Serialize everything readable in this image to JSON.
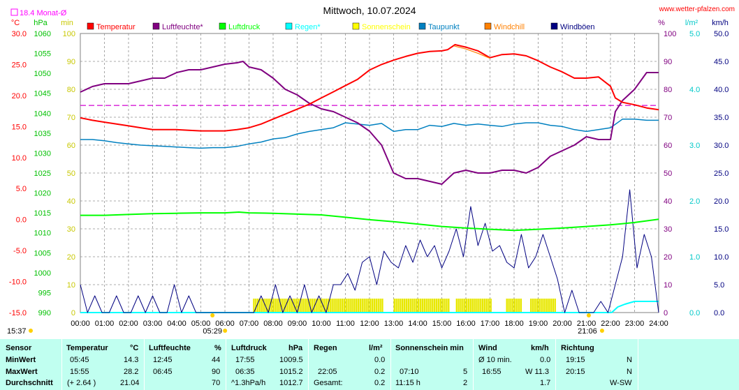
{
  "chart_data": {
    "type": "line",
    "title": "Mittwoch, 10.07.2024",
    "source": "www.wetter-pfalzen.com",
    "monthly_avg_label": "18.4 Monat-Ø",
    "axes_units": {
      "temp": "°C",
      "pressure": "hPa",
      "sun": "min",
      "humidity": "%",
      "rain": "l/m²",
      "wind": "km/h"
    },
    "x_ticks": [
      "00:00",
      "01:00",
      "02:00",
      "03:00",
      "04:00",
      "05:00",
      "06:00",
      "07:00",
      "08:00",
      "09:00",
      "10:00",
      "11:00",
      "12:00",
      "13:00",
      "14:00",
      "15:00",
      "16:00",
      "17:00",
      "18:00",
      "19:00",
      "20:00",
      "21:00",
      "22:00",
      "23:00",
      "24:00"
    ],
    "y_axes": {
      "temp": {
        "ticks": [
          "30.0",
          "25.0",
          "20.0",
          "15.0",
          "10.0",
          "5.0",
          "0.0",
          "-5.0",
          "-10.0",
          "-15.0"
        ],
        "range": [
          -15,
          30
        ]
      },
      "pressure": {
        "ticks": [
          "1060",
          "1055",
          "1050",
          "1045",
          "1040",
          "1035",
          "1030",
          "1025",
          "1020",
          "1015",
          "1010",
          "1005",
          "1000",
          "995",
          "990"
        ],
        "range": [
          990,
          1060
        ]
      },
      "sun": {
        "ticks": [
          "100",
          "90",
          "80",
          "70",
          "60",
          "50",
          "40",
          "30",
          "20",
          "10",
          "0"
        ],
        "range": [
          0,
          100
        ]
      },
      "humidity": {
        "ticks": [
          "100",
          "90",
          "80",
          "70",
          "60",
          "50",
          "40",
          "30",
          "20",
          "10",
          "0"
        ],
        "range": [
          0,
          100
        ]
      },
      "rain": {
        "ticks": [
          "5.0",
          "4.0",
          "3.0",
          "2.0",
          "1.0",
          "0.0"
        ],
        "range": [
          0,
          5
        ]
      },
      "wind": {
        "ticks": [
          "50.0",
          "45.0",
          "40.0",
          "35.0",
          "30.0",
          "25.0",
          "20.0",
          "15.0",
          "10.0",
          "5.0",
          "0.0"
        ],
        "range": [
          0,
          50
        ]
      }
    },
    "legend": [
      {
        "name": "Temperatur",
        "color": "#ff0000"
      },
      {
        "name": "Luftfeuchte*",
        "color": "#800080"
      },
      {
        "name": "Luftdruck",
        "color": "#00ff00"
      },
      {
        "name": "Regen*",
        "color": "#00ffff"
      },
      {
        "name": "Sonnenschein",
        "color": "#ffff00"
      },
      {
        "name": "Taupunkt",
        "color": "#0080c0"
      },
      {
        "name": "Windchill",
        "color": "#ff8000"
      },
      {
        "name": "Windböen",
        "color": "#000080"
      }
    ],
    "monthly_avg_temp": 18.4,
    "series": [
      {
        "name": "Temperatur",
        "axis": "temp",
        "color": "#ff0000",
        "x": [
          0,
          0.5,
          1,
          1.5,
          2,
          2.5,
          3,
          3.5,
          4,
          4.5,
          5,
          5.5,
          6,
          6.5,
          7,
          7.5,
          8,
          8.5,
          9,
          9.5,
          10,
          10.5,
          11,
          11.5,
          12,
          12.5,
          13,
          13.5,
          14,
          14.5,
          15,
          15.25,
          15.55,
          16,
          16.5,
          17,
          17.5,
          18,
          18.5,
          19,
          19.5,
          20,
          20.5,
          21,
          21.5,
          22,
          22.2,
          22.5,
          23,
          23.5,
          24
        ],
        "y": [
          16.4,
          16.0,
          15.7,
          15.4,
          15.1,
          14.8,
          14.5,
          14.5,
          14.5,
          14.4,
          14.3,
          14.3,
          14.3,
          14.5,
          14.8,
          15.4,
          16.2,
          17.0,
          17.8,
          18.6,
          19.6,
          20.6,
          21.6,
          22.6,
          24.1,
          25.0,
          25.7,
          26.3,
          26.8,
          27.1,
          27.2,
          27.4,
          28.2,
          27.8,
          27.2,
          26.1,
          26.6,
          26.7,
          26.4,
          25.6,
          24.6,
          23.8,
          22.8,
          22.8,
          23.0,
          21.5,
          19.6,
          18.9,
          18.5,
          18.0,
          17.7
        ]
      },
      {
        "name": "Luftfeuchte*",
        "axis": "humidity",
        "color": "#800080",
        "x": [
          0,
          0.5,
          1,
          1.5,
          2,
          2.5,
          3,
          3.5,
          4,
          4.5,
          5,
          5.5,
          6,
          6.5,
          6.75,
          7,
          7.5,
          8,
          8.5,
          9,
          9.5,
          10,
          10.5,
          11,
          11.5,
          12,
          12.5,
          13,
          13.5,
          14,
          14.5,
          15,
          15.5,
          16,
          16.5,
          17,
          17.5,
          18,
          18.5,
          19,
          19.5,
          20,
          20.5,
          21,
          21.5,
          22,
          22.2,
          22.5,
          23,
          23.5,
          24
        ],
        "y": [
          79,
          81,
          82,
          82,
          82,
          83,
          84,
          84,
          86,
          87,
          87,
          88,
          89,
          89.5,
          90,
          88,
          87,
          84,
          80,
          78,
          75,
          73,
          72,
          70,
          68,
          65,
          60,
          50,
          48,
          48,
          47,
          46,
          50,
          51,
          50,
          50,
          51,
          51,
          50,
          52,
          56,
          58,
          60,
          63,
          62,
          62,
          72,
          76,
          80,
          86,
          86
        ]
      },
      {
        "name": "Luftdruck",
        "axis": "pressure",
        "color": "#00ff00",
        "x": [
          0,
          1,
          2,
          3,
          4,
          5,
          6,
          6.58,
          7,
          8,
          9,
          10,
          11,
          12,
          13,
          14,
          15,
          16,
          17,
          18,
          19,
          20,
          21,
          22,
          23,
          24
        ],
        "y": [
          1014.4,
          1014.4,
          1014.6,
          1014.8,
          1014.9,
          1015.0,
          1015.0,
          1015.2,
          1015.0,
          1014.9,
          1014.7,
          1014.5,
          1013.9,
          1013.3,
          1012.8,
          1012.2,
          1011.6,
          1011.2,
          1010.9,
          1010.6,
          1010.9,
          1011.2,
          1011.6,
          1012.0,
          1012.6,
          1013.4
        ]
      },
      {
        "name": "Taupunkt",
        "axis": "temp",
        "color": "#0080c0",
        "x": [
          0,
          0.5,
          1,
          1.5,
          2,
          2.5,
          3,
          3.5,
          4,
          4.5,
          5,
          5.5,
          6,
          6.5,
          7,
          7.5,
          8,
          8.5,
          9,
          9.5,
          10,
          10.5,
          11,
          11.5,
          12,
          12.5,
          13,
          13.5,
          14,
          14.5,
          15,
          15.5,
          16,
          16.5,
          17,
          17.5,
          18,
          18.5,
          19,
          19.5,
          20,
          20.5,
          21,
          21.5,
          22,
          22.5,
          23,
          23.5,
          24
        ],
        "y": [
          12.9,
          12.9,
          12.7,
          12.4,
          12.2,
          12.0,
          11.9,
          11.8,
          11.7,
          11.6,
          11.5,
          11.6,
          11.6,
          11.8,
          12.2,
          12.5,
          13.0,
          13.2,
          13.8,
          14.2,
          14.5,
          14.8,
          15.6,
          15.4,
          15.2,
          15.5,
          14.2,
          14.5,
          14.5,
          15.2,
          15.0,
          15.5,
          15.2,
          15.4,
          15.2,
          15.0,
          15.4,
          15.6,
          15.6,
          15.2,
          15.0,
          14.5,
          14.2,
          14.5,
          14.8,
          16.2,
          16.2,
          16.0,
          16.0
        ]
      },
      {
        "name": "Windchill",
        "axis": "temp",
        "color": "#ff8000",
        "x": [
          15.5,
          16,
          16.5,
          17
        ],
        "y": [
          28.0,
          27.5,
          26.8,
          26.0
        ]
      },
      {
        "name": "Windböen",
        "axis": "wind",
        "color": "#000080",
        "x": [
          0,
          0.3,
          0.6,
          0.9,
          1.2,
          1.5,
          1.8,
          2.1,
          2.4,
          2.7,
          3.0,
          3.3,
          3.6,
          3.9,
          4.2,
          4.5,
          4.8,
          5.1,
          5.4,
          5.7,
          6.0,
          6.3,
          6.6,
          6.9,
          7.2,
          7.5,
          7.8,
          8.1,
          8.4,
          8.7,
          9.0,
          9.3,
          9.6,
          9.9,
          10.2,
          10.5,
          10.8,
          11.1,
          11.4,
          11.7,
          12.0,
          12.3,
          12.6,
          12.9,
          13.2,
          13.5,
          13.8,
          14.1,
          14.4,
          14.7,
          15.0,
          15.3,
          15.6,
          15.9,
          16.2,
          16.5,
          16.8,
          17.1,
          17.4,
          17.7,
          18.0,
          18.3,
          18.6,
          18.9,
          19.2,
          19.5,
          19.8,
          20.1,
          20.4,
          20.7,
          21.0,
          21.3,
          21.6,
          21.9,
          22.2,
          22.5,
          22.8,
          23.1,
          23.4,
          23.7,
          24.0
        ],
        "y": [
          5,
          0,
          3,
          0,
          0,
          3,
          0,
          0,
          3,
          0,
          3,
          0,
          0,
          5,
          0,
          3,
          0,
          0,
          0,
          0,
          0,
          0,
          0,
          0,
          0,
          3,
          0,
          5,
          0,
          3,
          0,
          5,
          0,
          3,
          0,
          5,
          5,
          7,
          4,
          9,
          10,
          5,
          11,
          9,
          8,
          12,
          9,
          13,
          10,
          12,
          8,
          11,
          15,
          10,
          19,
          12,
          16,
          11,
          12,
          9,
          8,
          14,
          8,
          10,
          14,
          10,
          6,
          0,
          4,
          0,
          0,
          0,
          2,
          0,
          5,
          10,
          22,
          8,
          14,
          10,
          0
        ]
      }
    ],
    "sunshine_intervals": [
      [
        "07:10",
        "09:45"
      ],
      [
        "09:45",
        "12:35"
      ],
      [
        "13:00",
        "15:20"
      ],
      [
        "15:35",
        "17:00"
      ],
      [
        "17:40",
        "18:15"
      ],
      [
        "18:40",
        "19:40"
      ]
    ],
    "rain_series": {
      "x": [
        22.05,
        22.3,
        22.6,
        23.0,
        23.5,
        24.0
      ],
      "y": [
        0.0,
        0.1,
        0.15,
        0.2,
        0.2,
        0.2
      ]
    },
    "annotations": {
      "sunrise": "05:29",
      "sunset": "21:06",
      "time_now": "15:37"
    }
  },
  "table": {
    "columns": {
      "sensor": {
        "header": "Sensor",
        "rows": [
          "MinWert",
          "MaxWert",
          "Durchschnitt"
        ]
      },
      "temp": {
        "header": "Temperatur",
        "unit": "°C",
        "times": [
          "05:45",
          "15:55",
          "(+ 2.64 )"
        ],
        "values": [
          "14.3",
          "28.2",
          "21.04"
        ]
      },
      "humidity": {
        "header": "Luftfeuchte",
        "unit": "%",
        "times": [
          "12:45",
          "06:45",
          ""
        ],
        "values": [
          "44",
          "90",
          "70"
        ]
      },
      "pressure": {
        "header": "Luftdruck",
        "unit": "hPa",
        "times": [
          "17:55",
          "06:35",
          "^1.3hPa/h"
        ],
        "values": [
          "1009.5",
          "1015.2",
          "1012.7"
        ]
      },
      "rain": {
        "header": "Regen",
        "unit": "l/m²",
        "times": [
          "",
          "22:05",
          "Gesamt:"
        ],
        "values": [
          "0.0",
          "0.2",
          "0.2"
        ]
      },
      "sun": {
        "header": "Sonnenschein min",
        "unit": "",
        "times": [
          "",
          "07:10",
          "11:15 h"
        ],
        "values": [
          "",
          "5",
          "2"
        ]
      },
      "wind": {
        "header": "Wind",
        "unit": "km/h",
        "times": [
          "Ø 10 min.",
          "16:55",
          ""
        ],
        "values": [
          "0.0",
          "W 11.3",
          "1.7"
        ]
      },
      "direction": {
        "header": "Richtung",
        "unit": "",
        "times": [
          "19:15",
          "20:15",
          ""
        ],
        "values": [
          "N",
          "N",
          "W-SW"
        ]
      }
    }
  }
}
